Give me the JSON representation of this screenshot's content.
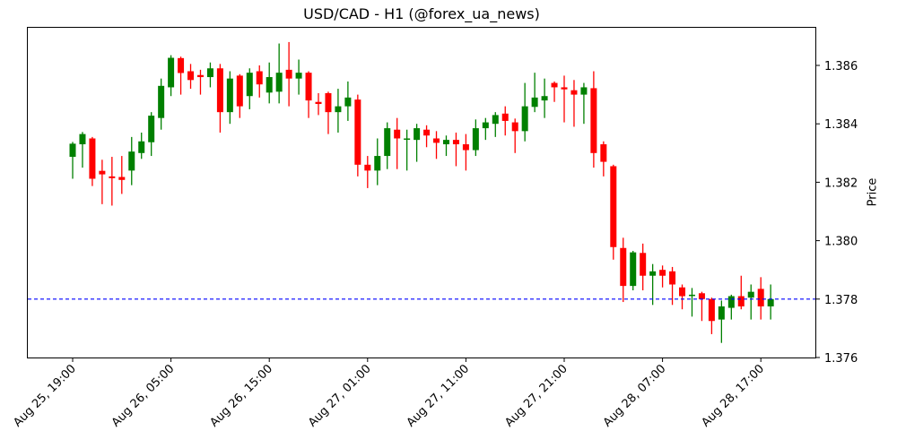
{
  "chart_data": {
    "type": "candlestick",
    "title": "USD/CAD - H1 (@forex_ua_news)",
    "xlabel": "",
    "ylabel": "Price",
    "ylim": [
      1.376,
      1.3873
    ],
    "yticks": [
      "1.376",
      "1.378",
      "1.380",
      "1.382",
      "1.384",
      "1.386"
    ],
    "xticks": [
      "Aug 25, 19:00",
      "Aug 26, 05:00",
      "Aug 26, 15:00",
      "Aug 27, 01:00",
      "Aug 27, 11:00",
      "Aug 27, 21:00",
      "Aug 28, 07:00",
      "Aug 28, 17:00"
    ],
    "grid": false,
    "colors": {
      "up": "#008000",
      "down": "#ff0000",
      "hline": "#0000ff"
    },
    "hline": {
      "value": 1.378,
      "style": "dashed",
      "color": "#0000ff"
    },
    "candles": [
      [
        1.38287,
        1.38332,
        1.38338,
        1.38212
      ],
      [
        1.3833,
        1.38365,
        1.38372,
        1.3825
      ],
      [
        1.3835,
        1.38212,
        1.38355,
        1.38187
      ],
      [
        1.38239,
        1.38227,
        1.38277,
        1.38125
      ],
      [
        1.3822,
        1.38214,
        1.38287,
        1.3812
      ],
      [
        1.38218,
        1.38208,
        1.3829,
        1.3816
      ],
      [
        1.3824,
        1.38305,
        1.38355,
        1.3819
      ],
      [
        1.383,
        1.3834,
        1.3837,
        1.3828
      ],
      [
        1.38337,
        1.38428,
        1.3844,
        1.3829
      ],
      [
        1.3842,
        1.3853,
        1.38555,
        1.3838
      ],
      [
        1.38525,
        1.38626,
        1.38635,
        1.38495
      ],
      [
        1.38625,
        1.38574,
        1.3863,
        1.385
      ],
      [
        1.3858,
        1.3855,
        1.38605,
        1.3852
      ],
      [
        1.38567,
        1.3856,
        1.38585,
        1.385
      ],
      [
        1.3856,
        1.3859,
        1.3861,
        1.38525
      ],
      [
        1.3859,
        1.3844,
        1.38605,
        1.3837
      ],
      [
        1.3844,
        1.38555,
        1.3858,
        1.384
      ],
      [
        1.38565,
        1.3846,
        1.3857,
        1.3842
      ],
      [
        1.38495,
        1.38575,
        1.3859,
        1.3845
      ],
      [
        1.3858,
        1.38535,
        1.386,
        1.3849
      ],
      [
        1.38507,
        1.3856,
        1.3861,
        1.3847
      ],
      [
        1.3851,
        1.38575,
        1.38675,
        1.3847
      ],
      [
        1.38585,
        1.38555,
        1.3868,
        1.3846
      ],
      [
        1.38555,
        1.38575,
        1.3862,
        1.385
      ],
      [
        1.38575,
        1.3848,
        1.3858,
        1.3842
      ],
      [
        1.38475,
        1.38468,
        1.38505,
        1.3843
      ],
      [
        1.38505,
        1.3844,
        1.3851,
        1.38365
      ],
      [
        1.3844,
        1.3846,
        1.3852,
        1.3837
      ],
      [
        1.3846,
        1.3849,
        1.38545,
        1.3841
      ],
      [
        1.38483,
        1.3826,
        1.385,
        1.3822
      ],
      [
        1.3826,
        1.3824,
        1.3829,
        1.3818
      ],
      [
        1.3824,
        1.3829,
        1.3835,
        1.3819
      ],
      [
        1.3829,
        1.38385,
        1.38405,
        1.38245
      ],
      [
        1.3838,
        1.3835,
        1.3842,
        1.38245
      ],
      [
        1.38346,
        1.3835,
        1.3838,
        1.3824
      ],
      [
        1.38345,
        1.38385,
        1.384,
        1.3827
      ],
      [
        1.3838,
        1.3836,
        1.38395,
        1.3832
      ],
      [
        1.3835,
        1.38335,
        1.38375,
        1.3828
      ],
      [
        1.3833,
        1.38345,
        1.3836,
        1.3829
      ],
      [
        1.38345,
        1.3833,
        1.3837,
        1.38255
      ],
      [
        1.3833,
        1.3831,
        1.38365,
        1.3824
      ],
      [
        1.3831,
        1.38385,
        1.38415,
        1.3829
      ],
      [
        1.38385,
        1.38405,
        1.3842,
        1.38345
      ],
      [
        1.384,
        1.3843,
        1.3844,
        1.38355
      ],
      [
        1.38435,
        1.3841,
        1.3846,
        1.3836
      ],
      [
        1.38405,
        1.38375,
        1.38418,
        1.383
      ],
      [
        1.38375,
        1.3846,
        1.3854,
        1.3834
      ],
      [
        1.38458,
        1.3849,
        1.38575,
        1.3844
      ],
      [
        1.3848,
        1.38495,
        1.38555,
        1.3842
      ],
      [
        1.3854,
        1.38525,
        1.38545,
        1.38475
      ],
      [
        1.38525,
        1.38518,
        1.38565,
        1.38405
      ],
      [
        1.38515,
        1.385,
        1.3855,
        1.3839
      ],
      [
        1.385,
        1.38525,
        1.3854,
        1.384
      ],
      [
        1.38522,
        1.383,
        1.3858,
        1.3825
      ],
      [
        1.3833,
        1.3827,
        1.3834,
        1.3822
      ],
      [
        1.38255,
        1.37978,
        1.3826,
        1.37935
      ],
      [
        1.37975,
        1.37845,
        1.3801,
        1.3779
      ],
      [
        1.37845,
        1.3796,
        1.37965,
        1.3783
      ],
      [
        1.37958,
        1.3788,
        1.3799,
        1.3783
      ],
      [
        1.3788,
        1.37895,
        1.3792,
        1.3778
      ],
      [
        1.379,
        1.3788,
        1.37915,
        1.3784
      ],
      [
        1.37895,
        1.3785,
        1.3791,
        1.3778
      ],
      [
        1.3784,
        1.3781,
        1.3785,
        1.37765
      ],
      [
        1.37812,
        1.37815,
        1.37838,
        1.3774
      ],
      [
        1.3782,
        1.378,
        1.37825,
        1.37725
      ],
      [
        1.378,
        1.37725,
        1.37805,
        1.3768
      ],
      [
        1.3773,
        1.37775,
        1.37795,
        1.3765
      ],
      [
        1.3777,
        1.3781,
        1.37815,
        1.3773
      ],
      [
        1.3781,
        1.37775,
        1.3788,
        1.37765
      ],
      [
        1.37805,
        1.37825,
        1.3785,
        1.3773
      ],
      [
        1.37835,
        1.37775,
        1.37875,
        1.3773
      ],
      [
        1.37775,
        1.378,
        1.3785,
        1.3773
      ]
    ]
  }
}
